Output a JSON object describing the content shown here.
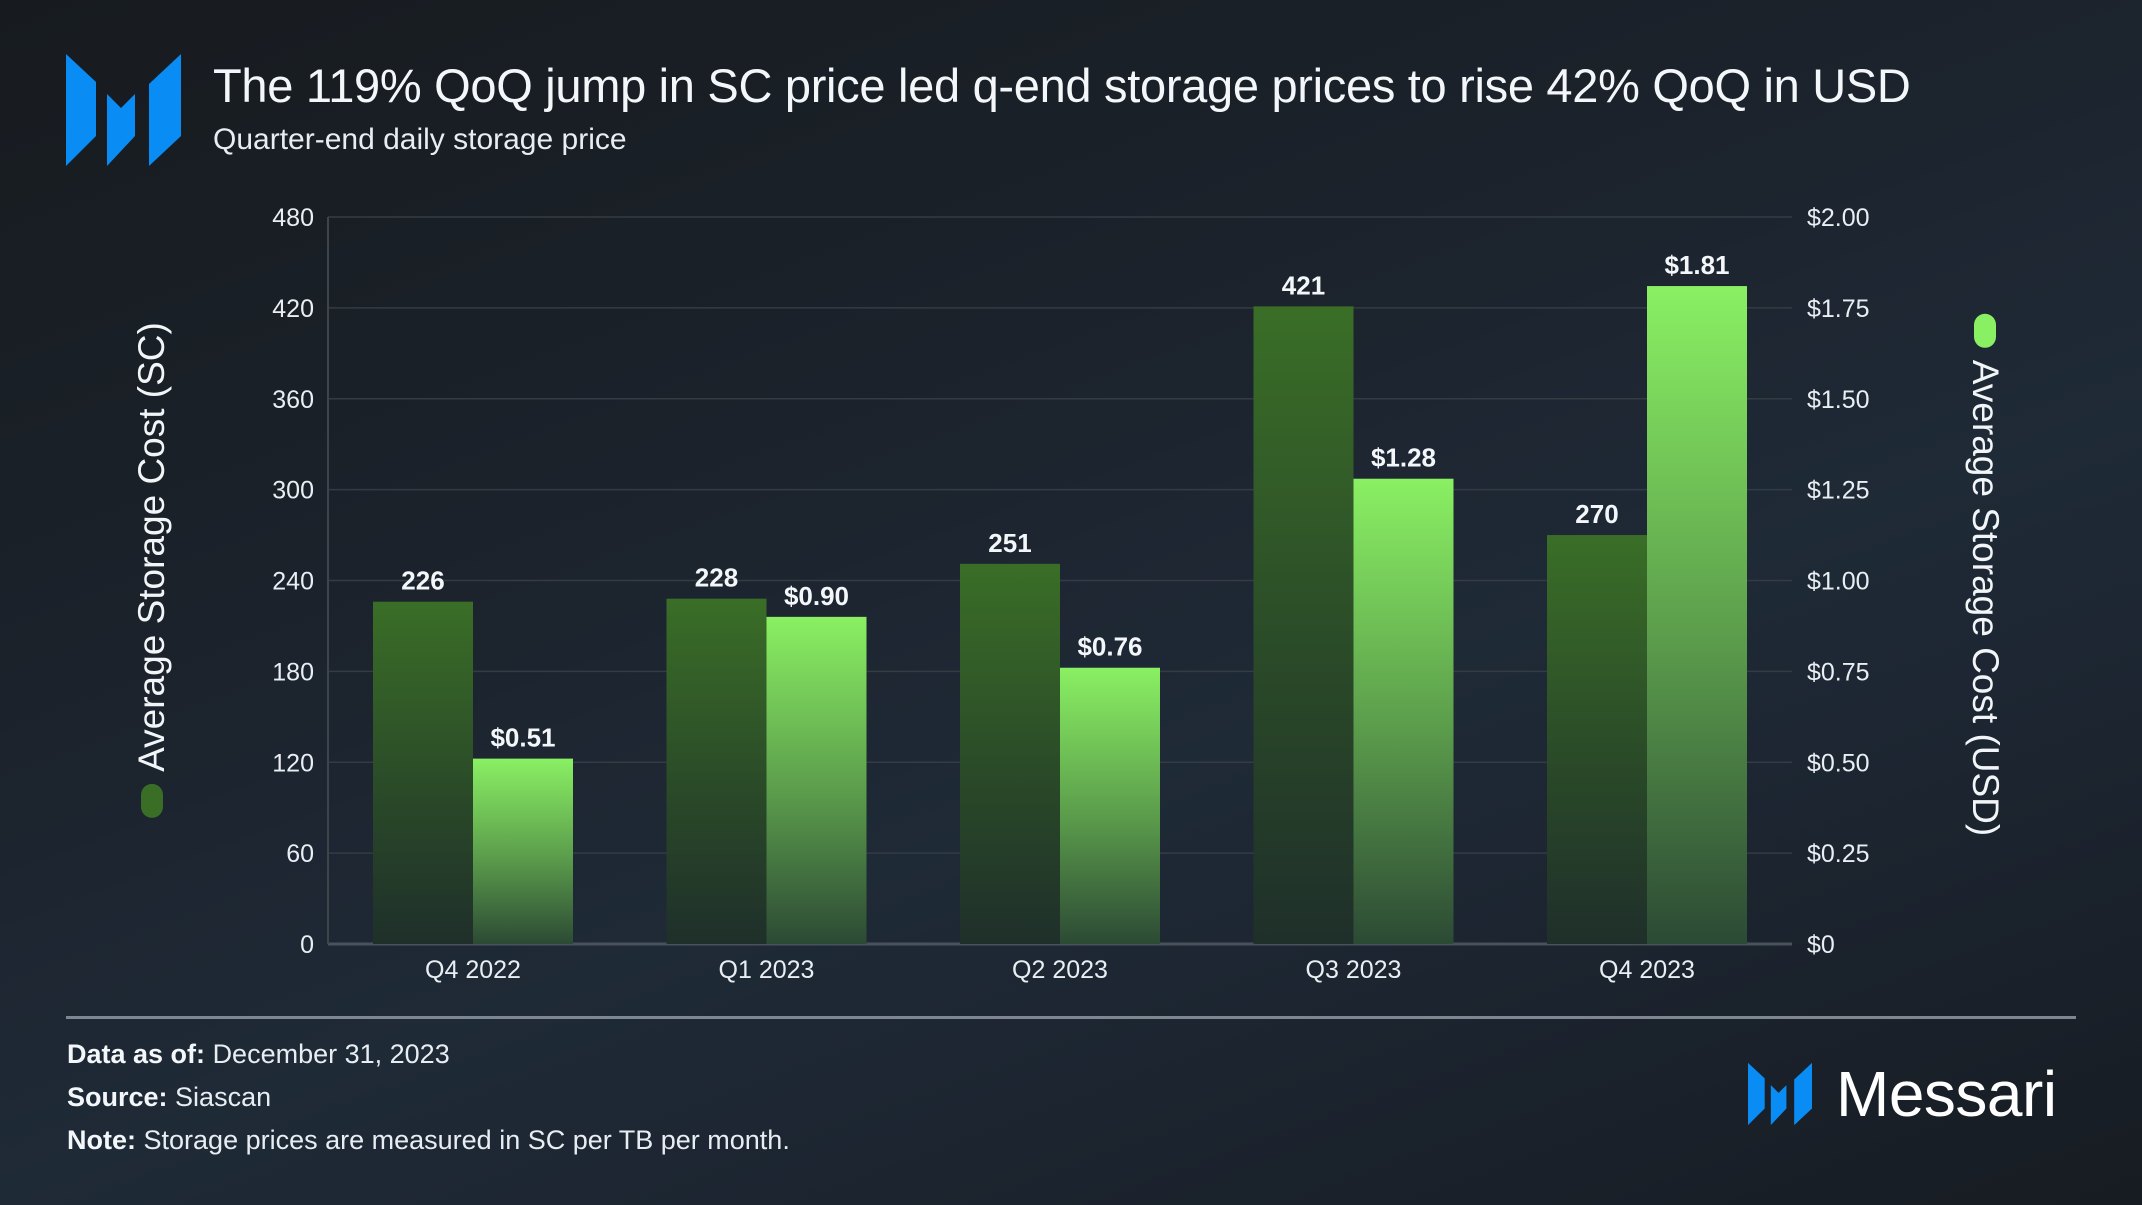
{
  "header": {
    "logo_icon": "messari-m-icon",
    "title": "The 119% QoQ jump in SC price led q-end storage prices to rise 42% QoQ in USD",
    "subtitle": "Quarter-end daily storage price"
  },
  "colors": {
    "brand_blue": "#0a8cf5",
    "sc_series": "#3a6e27",
    "usd_series": "#8af063",
    "background": "#1b222b",
    "gridline": "#3a4149"
  },
  "chart_data": {
    "type": "bar",
    "title": "The 119% QoQ jump in SC price led q-end storage prices to rise 42% QoQ in USD",
    "subtitle": "Quarter-end daily storage price",
    "categories": [
      "Q4 2022",
      "Q1 2023",
      "Q2 2023",
      "Q3 2023",
      "Q4 2023"
    ],
    "series": [
      {
        "name": "Average Storage Cost (SC)",
        "axis": "left",
        "values": [
          226,
          228,
          251,
          421,
          270
        ],
        "labels": [
          "226",
          "228",
          "251",
          "421",
          "270"
        ]
      },
      {
        "name": "Average Storage Cost (USD)",
        "axis": "right",
        "values": [
          0.51,
          0.9,
          0.76,
          1.28,
          1.81
        ],
        "labels": [
          "$0.51",
          "$0.90",
          "$0.76",
          "$1.28",
          "$1.81"
        ]
      }
    ],
    "ylabel_left": "Average Storage Cost (SC)",
    "ylabel_right": "Average Storage Cost (USD)",
    "ylim_left": [
      0,
      480
    ],
    "ylim_right": [
      0,
      2.0
    ],
    "yticks_left": [
      "0",
      "60",
      "120",
      "180",
      "240",
      "300",
      "360",
      "420",
      "480"
    ],
    "yticks_right": [
      "$0",
      "$0.25",
      "$0.50",
      "$0.75",
      "$1.00",
      "$1.25",
      "$1.50",
      "$1.75",
      "$2.00"
    ],
    "grid": true,
    "legend": "axis-titles"
  },
  "footer": {
    "data_as_of_label": "Data as of:",
    "data_as_of_value": "December 31, 2023",
    "source_label": "Source:",
    "source_value": "Siascan",
    "note_label": "Note:",
    "note_value": "Storage prices are measured in SC per TB per month.",
    "brand_name": "Messari"
  }
}
